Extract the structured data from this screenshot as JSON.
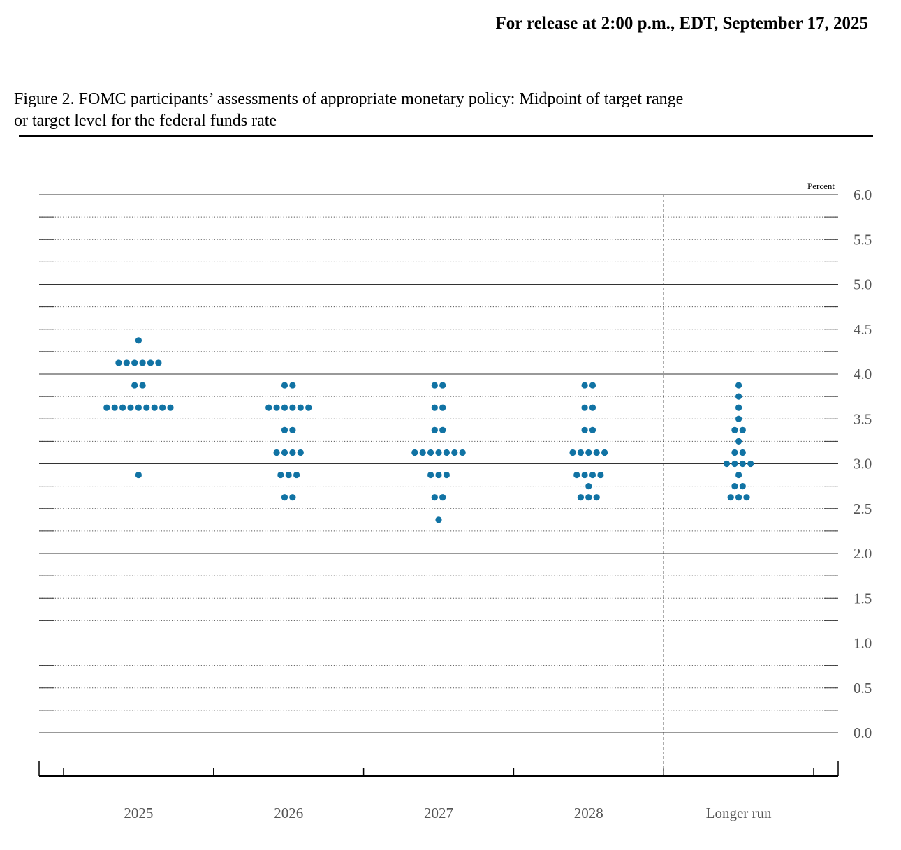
{
  "header": {
    "release": "For release at 2:00 p.m., EDT, September 17, 2025"
  },
  "chart_data": {
    "type": "dot",
    "title": "Figure 2. FOMC participants’ assessments of appropriate monetary policy: Midpoint of target range",
    "subtitle": "or target level for the federal funds rate",
    "y_unit": "Percent",
    "categories": [
      "2025",
      "2026",
      "2027",
      "2028",
      "Longer run"
    ],
    "color": "#1173a4",
    "dots": [
      [
        {
          "value": 4.375,
          "count": 1
        },
        {
          "value": 4.125,
          "count": 6
        },
        {
          "value": 3.875,
          "count": 2
        },
        {
          "value": 3.625,
          "count": 9
        },
        {
          "value": 2.875,
          "count": 1
        }
      ],
      [
        {
          "value": 3.875,
          "count": 2
        },
        {
          "value": 3.625,
          "count": 6
        },
        {
          "value": 3.375,
          "count": 2
        },
        {
          "value": 3.125,
          "count": 4
        },
        {
          "value": 2.875,
          "count": 3
        },
        {
          "value": 2.625,
          "count": 2
        }
      ],
      [
        {
          "value": 3.875,
          "count": 2
        },
        {
          "value": 3.625,
          "count": 2
        },
        {
          "value": 3.375,
          "count": 2
        },
        {
          "value": 3.125,
          "count": 7
        },
        {
          "value": 2.875,
          "count": 3
        },
        {
          "value": 2.625,
          "count": 2
        },
        {
          "value": 2.375,
          "count": 1
        }
      ],
      [
        {
          "value": 3.875,
          "count": 2
        },
        {
          "value": 3.625,
          "count": 2
        },
        {
          "value": 3.375,
          "count": 2
        },
        {
          "value": 3.125,
          "count": 5
        },
        {
          "value": 2.875,
          "count": 4
        },
        {
          "value": 2.75,
          "count": 1
        },
        {
          "value": 2.625,
          "count": 3
        }
      ],
      [
        {
          "value": 3.875,
          "count": 1
        },
        {
          "value": 3.75,
          "count": 1
        },
        {
          "value": 3.625,
          "count": 1
        },
        {
          "value": 3.5,
          "count": 1
        },
        {
          "value": 3.375,
          "count": 2
        },
        {
          "value": 3.25,
          "count": 1
        },
        {
          "value": 3.125,
          "count": 2
        },
        {
          "value": 3.0,
          "count": 4
        },
        {
          "value": 2.875,
          "count": 1
        },
        {
          "value": 2.75,
          "count": 2
        },
        {
          "value": 2.625,
          "count": 3
        }
      ]
    ],
    "ylim": [
      0,
      6
    ],
    "yticks": [
      {
        "value": 0,
        "label": "0.0"
      },
      {
        "value": 0.5,
        "label": "0.5"
      },
      {
        "value": 1,
        "label": "1.0"
      },
      {
        "value": 1.5,
        "label": "1.5"
      },
      {
        "value": 2,
        "label": "2.0"
      },
      {
        "value": 2.5,
        "label": "2.5"
      },
      {
        "value": 3,
        "label": "3.0"
      },
      {
        "value": 3.5,
        "label": "3.5"
      },
      {
        "value": 4,
        "label": "4.0"
      },
      {
        "value": 4.5,
        "label": "4.5"
      },
      {
        "value": 5,
        "label": "5.0"
      },
      {
        "value": 5.5,
        "label": "5.5"
      },
      {
        "value": 6,
        "label": "6.0"
      }
    ],
    "minor_yticks": [
      0.25,
      0.75,
      1.25,
      1.75,
      2.25,
      2.75,
      3.25,
      3.75,
      4.25,
      4.75,
      5.25,
      5.75
    ],
    "major_every": 1,
    "grid": true
  }
}
